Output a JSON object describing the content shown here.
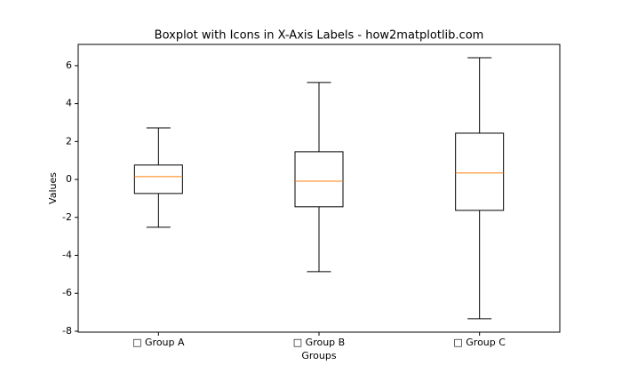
{
  "chart_data": {
    "type": "boxplot",
    "title": "Boxplot with Icons in X-Axis Labels - how2matplotlib.com",
    "xlabel": "Groups",
    "ylabel": "Values",
    "categories": [
      "□ Group A",
      "□ Group B",
      "□ Group C"
    ],
    "boxes": [
      {
        "whislo": -2.52,
        "q1": -0.74,
        "med": 0.15,
        "q3": 0.76,
        "whishi": 2.72
      },
      {
        "whislo": -4.86,
        "q1": -1.44,
        "med": -0.09,
        "q3": 1.46,
        "whishi": 5.11
      },
      {
        "whislo": -7.34,
        "q1": -1.63,
        "med": 0.34,
        "q3": 2.44,
        "whishi": 6.42
      }
    ],
    "box_color": "#000000",
    "median_color": "#ff7f0e",
    "ylim": [
      -8.05,
      7.12
    ],
    "yticks": [
      -8,
      -6,
      -4,
      -2,
      0,
      2,
      4,
      6
    ]
  }
}
